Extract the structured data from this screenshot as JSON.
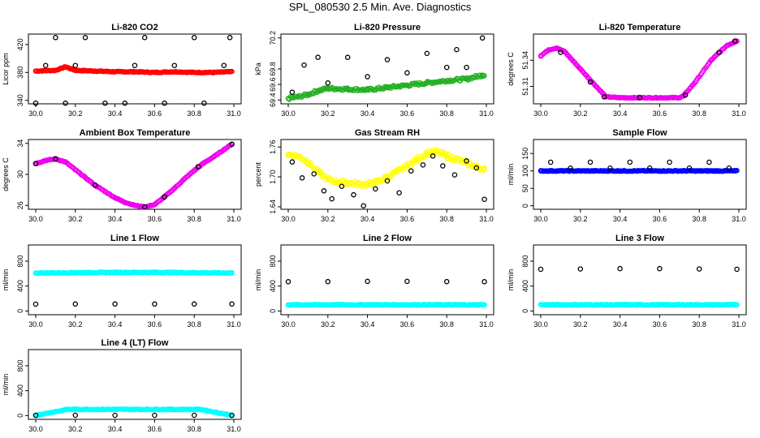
{
  "page_title": "SPL_080530  2.5 Min. Ave. Diagnostics",
  "chart_data": [
    {
      "type": "scatter",
      "title": "Li-820 CO2",
      "ylabel": "Licor ppm",
      "xlim": [
        30.0,
        31.0
      ],
      "ylim": [
        335,
        435
      ],
      "xticks": [
        "30.0",
        "30.2",
        "30.4",
        "30.6",
        "30.8",
        "31.0"
      ],
      "xtick_values": [
        30.0,
        30.2,
        30.4,
        30.6,
        30.8,
        31.0
      ],
      "yticks": [
        "340",
        "380",
        "420"
      ],
      "ytick_values": [
        340,
        380,
        420
      ],
      "series": [
        {
          "color": "#ff0000",
          "x": [
            30.0,
            30.1,
            30.15,
            30.2,
            30.3,
            30.4,
            30.5,
            30.6,
            30.7,
            30.8,
            30.9,
            30.98
          ],
          "values": [
            382,
            383,
            388,
            383,
            382,
            381,
            381,
            380,
            381,
            380,
            380,
            381
          ]
        },
        {
          "color": "#000000",
          "x": [
            30.0,
            30.05,
            30.1,
            30.15,
            30.2,
            30.25,
            30.35,
            30.45,
            30.5,
            30.55,
            30.65,
            30.7,
            30.8,
            30.85,
            30.95,
            30.98
          ],
          "values": [
            336,
            390,
            430,
            336,
            390,
            430,
            336,
            336,
            390,
            430,
            336,
            390,
            430,
            336,
            390,
            430
          ]
        }
      ]
    },
    {
      "type": "scatter",
      "title": "Li-820 Pressure",
      "ylabel": "kPa",
      "xlim": [
        30.0,
        31.0
      ],
      "ylim": [
        69.35,
        70.25
      ],
      "xticks": [
        "30.0",
        "30.2",
        "30.4",
        "30.6",
        "30.8",
        "31.0"
      ],
      "xtick_values": [
        30.0,
        30.2,
        30.4,
        30.6,
        30.8,
        31.0
      ],
      "yticks": [
        "69.4",
        "69.6",
        "69.8",
        "70.2"
      ],
      "ytick_values": [
        69.4,
        69.6,
        69.8,
        70.2
      ],
      "series": [
        {
          "color": "#22b022",
          "x": [
            30.0,
            30.05,
            30.1,
            30.15,
            30.2,
            30.3,
            30.4,
            30.5,
            30.6,
            30.7,
            30.8,
            30.9,
            30.98
          ],
          "values": [
            69.42,
            69.44,
            69.47,
            69.52,
            69.55,
            69.54,
            69.53,
            69.56,
            69.59,
            69.62,
            69.65,
            69.67,
            69.72
          ]
        },
        {
          "color": "#000000",
          "x": [
            30.02,
            30.08,
            30.15,
            30.2,
            30.3,
            30.4,
            30.5,
            30.6,
            30.7,
            30.8,
            30.85,
            30.9,
            30.98
          ],
          "values": [
            69.5,
            69.85,
            69.95,
            69.62,
            69.95,
            69.7,
            69.92,
            69.75,
            70.0,
            69.82,
            70.05,
            69.82,
            70.2
          ]
        }
      ]
    },
    {
      "type": "scatter",
      "title": "Li-820 Temperature",
      "ylabel": "degrees C",
      "xlim": [
        30.0,
        31.0
      ],
      "ylim": [
        51.29,
        51.37
      ],
      "xticks": [
        "30.0",
        "30.2",
        "30.4",
        "30.6",
        "30.8",
        "31.0"
      ],
      "xtick_values": [
        30.0,
        30.2,
        30.4,
        30.6,
        30.8,
        31.0
      ],
      "yticks": [
        "51.31",
        "51.34"
      ],
      "ytick_values": [
        51.31,
        51.34
      ],
      "series": [
        {
          "color": "#ee00ee",
          "x": [
            30.0,
            30.04,
            30.08,
            30.12,
            30.2,
            30.28,
            30.33,
            30.4,
            30.5,
            30.6,
            30.7,
            30.72,
            30.78,
            30.86,
            30.94,
            30.99
          ],
          "values": [
            51.345,
            51.352,
            51.354,
            51.35,
            51.33,
            51.31,
            51.298,
            51.297,
            51.297,
            51.297,
            51.297,
            51.299,
            51.315,
            51.34,
            51.357,
            51.362
          ]
        },
        {
          "color": "#000000",
          "x": [
            30.1,
            30.25,
            30.32,
            30.5,
            30.73,
            30.9,
            30.98
          ],
          "values": [
            51.349,
            51.315,
            51.298,
            51.297,
            51.3,
            51.349,
            51.362
          ]
        }
      ]
    },
    {
      "type": "scatter",
      "title": "Ambient Box Temperature",
      "ylabel": "degrees C",
      "xlim": [
        30.0,
        31.0
      ],
      "ylim": [
        25.5,
        34.5
      ],
      "xticks": [
        "30.0",
        "30.2",
        "30.4",
        "30.6",
        "30.8",
        "31.0"
      ],
      "xtick_values": [
        30.0,
        30.2,
        30.4,
        30.6,
        30.8,
        31.0
      ],
      "yticks": [
        "26",
        "30",
        "34"
      ],
      "ytick_values": [
        26,
        30,
        34
      ],
      "series": [
        {
          "color": "#ee00ee",
          "x": [
            30.0,
            30.05,
            30.1,
            30.15,
            30.2,
            30.25,
            30.3,
            30.35,
            30.4,
            30.45,
            30.5,
            30.55,
            30.6,
            30.65,
            30.7,
            30.75,
            30.8,
            30.85,
            30.9,
            30.95,
            30.99
          ],
          "values": [
            31.4,
            31.8,
            32.0,
            31.6,
            30.6,
            29.6,
            28.6,
            27.8,
            27.0,
            26.4,
            26.0,
            25.8,
            26.1,
            27.1,
            28.2,
            29.4,
            30.5,
            31.5,
            32.3,
            33.2,
            33.9
          ]
        },
        {
          "color": "#000000",
          "x": [
            30.0,
            30.1,
            30.3,
            30.55,
            30.65,
            30.82,
            30.99
          ],
          "values": [
            31.4,
            32.0,
            28.6,
            25.8,
            27.1,
            31.0,
            33.9
          ]
        }
      ]
    },
    {
      "type": "scatter",
      "title": "Gas Stream RH",
      "ylabel": "percent",
      "xlim": [
        30.0,
        31.0
      ],
      "ylim": [
        1.635,
        1.775
      ],
      "xticks": [
        "30.0",
        "30.2",
        "30.4",
        "30.6",
        "30.8",
        "31.0"
      ],
      "xtick_values": [
        30.0,
        30.2,
        30.4,
        30.6,
        30.8,
        31.0
      ],
      "yticks": [
        "1.64",
        "1.70",
        "1.76"
      ],
      "ytick_values": [
        1.64,
        1.7,
        1.76
      ],
      "series": [
        {
          "color": "#ffff00",
          "x": [
            30.0,
            30.05,
            30.1,
            30.15,
            30.2,
            30.25,
            30.3,
            30.35,
            30.4,
            30.45,
            30.5,
            30.55,
            30.6,
            30.65,
            30.7,
            30.75,
            30.8,
            30.85,
            30.9,
            30.95,
            30.99
          ],
          "values": [
            1.745,
            1.742,
            1.73,
            1.71,
            1.695,
            1.69,
            1.688,
            1.686,
            1.685,
            1.69,
            1.7,
            1.71,
            1.722,
            1.735,
            1.748,
            1.75,
            1.742,
            1.735,
            1.728,
            1.72,
            1.715
          ]
        },
        {
          "color": "#000000",
          "x": [
            30.02,
            30.07,
            30.13,
            30.18,
            30.22,
            30.27,
            30.33,
            30.38,
            30.44,
            30.5,
            30.56,
            30.62,
            30.68,
            30.73,
            30.78,
            30.84,
            30.9,
            30.95,
            30.99
          ],
          "values": [
            1.73,
            1.698,
            1.706,
            1.672,
            1.656,
            1.681,
            1.664,
            1.642,
            1.676,
            1.692,
            1.668,
            1.712,
            1.724,
            1.742,
            1.722,
            1.704,
            1.732,
            1.718,
            1.655
          ]
        }
      ]
    },
    {
      "type": "scatter",
      "title": "Sample Flow",
      "ylabel": "ml/min",
      "xlim": [
        30.0,
        31.0
      ],
      "ylim": [
        -10,
        190
      ],
      "xticks": [
        "30.0",
        "30.2",
        "30.4",
        "30.6",
        "30.8",
        "31.0"
      ],
      "xtick_values": [
        30.0,
        30.2,
        30.4,
        30.6,
        30.8,
        31.0
      ],
      "yticks": [
        "0",
        "50",
        "100",
        "150"
      ],
      "ytick_values": [
        0,
        50,
        100,
        150
      ],
      "series": [
        {
          "color": "#0000ff",
          "x": [
            30.0,
            30.2,
            30.4,
            30.6,
            30.8,
            30.98
          ],
          "values": [
            100,
            100,
            100,
            100,
            100,
            100
          ]
        },
        {
          "color": "#000000",
          "x": [
            30.05,
            30.15,
            30.25,
            30.35,
            30.45,
            30.55,
            30.65,
            30.75,
            30.85,
            30.95
          ],
          "values": [
            125,
            108,
            125,
            108,
            125,
            108,
            125,
            108,
            125,
            108
          ]
        }
      ]
    },
    {
      "type": "scatter",
      "title": "Line 1 Flow",
      "ylabel": "ml/min",
      "xlim": [
        30.0,
        31.0
      ],
      "ylim": [
        -60,
        1060
      ],
      "xticks": [
        "30.0",
        "30.2",
        "30.4",
        "30.6",
        "30.8",
        "31.0"
      ],
      "xtick_values": [
        30.0,
        30.2,
        30.4,
        30.6,
        30.8,
        31.0
      ],
      "yticks": [
        "0",
        "400",
        "800"
      ],
      "ytick_values": [
        0,
        400,
        800
      ],
      "series": [
        {
          "color": "#00ffff",
          "x": [
            30.0,
            30.2,
            30.4,
            30.6,
            30.8,
            30.99
          ],
          "values": [
            610,
            615,
            620,
            620,
            615,
            610
          ]
        },
        {
          "color": "#000000",
          "x": [
            30.0,
            30.2,
            30.4,
            30.6,
            30.8,
            30.99
          ],
          "values": [
            110,
            112,
            112,
            112,
            112,
            112
          ]
        }
      ]
    },
    {
      "type": "scatter",
      "title": "Line 2 Flow",
      "ylabel": "ml/min",
      "xlim": [
        30.0,
        31.0
      ],
      "ylim": [
        -60,
        1060
      ],
      "xticks": [
        "30.0",
        "30.2",
        "30.4",
        "30.6",
        "30.8",
        "31.0"
      ],
      "xtick_values": [
        30.0,
        30.2,
        30.4,
        30.6,
        30.8,
        31.0
      ],
      "yticks": [
        "0",
        "400",
        "800"
      ],
      "ytick_values": [
        0,
        400,
        800
      ],
      "series": [
        {
          "color": "#00ffff",
          "x": [
            30.0,
            30.2,
            30.4,
            30.6,
            30.8,
            30.99
          ],
          "values": [
            100,
            100,
            100,
            100,
            100,
            100
          ]
        },
        {
          "color": "#000000",
          "x": [
            30.0,
            30.2,
            30.4,
            30.6,
            30.8,
            30.99
          ],
          "values": [
            470,
            472,
            475,
            475,
            472,
            470
          ]
        }
      ]
    },
    {
      "type": "scatter",
      "title": "Line 3 Flow",
      "ylabel": "ml/min",
      "xlim": [
        30.0,
        31.0
      ],
      "ylim": [
        -60,
        1060
      ],
      "xticks": [
        "30.0",
        "30.2",
        "30.4",
        "30.6",
        "30.8",
        "31.0"
      ],
      "xtick_values": [
        30.0,
        30.2,
        30.4,
        30.6,
        30.8,
        31.0
      ],
      "yticks": [
        "0",
        "400",
        "800"
      ],
      "ytick_values": [
        0,
        400,
        800
      ],
      "series": [
        {
          "color": "#00ffff",
          "x": [
            30.0,
            30.2,
            30.4,
            30.6,
            30.8,
            30.99
          ],
          "values": [
            100,
            100,
            100,
            100,
            100,
            100
          ]
        },
        {
          "color": "#000000",
          "x": [
            30.0,
            30.2,
            30.4,
            30.6,
            30.8,
            30.99
          ],
          "values": [
            670,
            675,
            680,
            680,
            675,
            670
          ]
        }
      ]
    },
    {
      "type": "scatter",
      "title": "Line 4 (LT) Flow",
      "ylabel": "ml/min",
      "xlim": [
        30.0,
        31.0
      ],
      "ylim": [
        -60,
        1060
      ],
      "xticks": [
        "30.0",
        "30.2",
        "30.4",
        "30.6",
        "30.8",
        "31.0"
      ],
      "xtick_values": [
        30.0,
        30.2,
        30.4,
        30.6,
        30.8,
        31.0
      ],
      "yticks": [
        "0",
        "400",
        "800"
      ],
      "ytick_values": [
        0,
        400,
        800
      ],
      "series": [
        {
          "color": "#00ffff",
          "x": [
            30.0,
            30.16,
            30.5,
            30.83,
            30.99
          ],
          "values": [
            5,
            100,
            100,
            100,
            5
          ]
        },
        {
          "color": "#000000",
          "x": [
            30.0,
            30.2,
            30.4,
            30.6,
            30.8,
            30.99
          ],
          "values": [
            5,
            5,
            5,
            5,
            5,
            5
          ]
        }
      ]
    }
  ]
}
